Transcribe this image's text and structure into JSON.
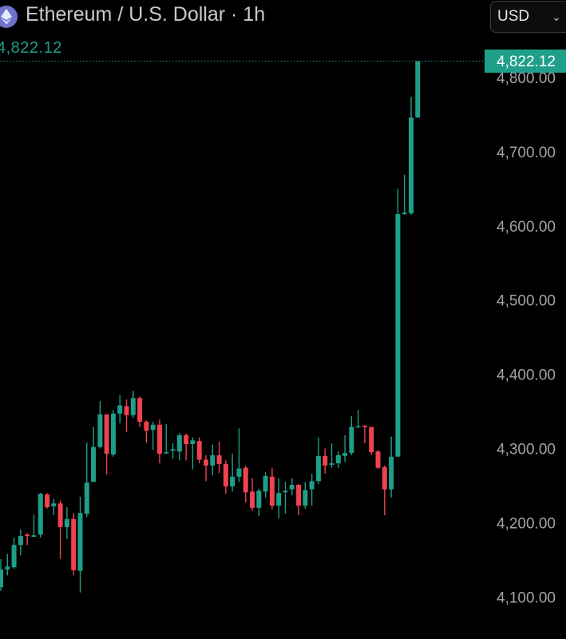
{
  "header": {
    "title": "Ethereum / U.S. Dollar · 1h",
    "icon": "ethereum-icon",
    "last_price": "4,822.12"
  },
  "currency_selector": {
    "value": "USD",
    "icon": "chevron-down-icon"
  },
  "colors": {
    "up": "#1f9e89",
    "down": "#f0424f",
    "axis_text": "#a3a3a6",
    "background": "#000000"
  },
  "chart_data": {
    "type": "candlestick",
    "title": "Ethereum / U.S. Dollar · 1h",
    "y_ticks": [
      "4,800.00",
      "4,700.00",
      "4,600.00",
      "4,500.00",
      "4,400.00",
      "4,300.00",
      "4,200.00",
      "4,100.00"
    ],
    "y_tick_values": [
      4800,
      4700,
      4600,
      4500,
      4400,
      4300,
      4200,
      4100
    ],
    "ylim": [
      4055,
      4870
    ],
    "last_price_label": "4,822.12",
    "last_price": 4822.12,
    "grid": false,
    "candles": [
      [
        4113,
        4151,
        4108,
        4137
      ],
      [
        4137,
        4158,
        4129,
        4141
      ],
      [
        4140,
        4180,
        4138,
        4170
      ],
      [
        4170,
        4191,
        4156,
        4182
      ],
      [
        4184,
        4186,
        4170,
        4182
      ],
      [
        4181,
        4211,
        4181,
        4183
      ],
      [
        4184,
        4240,
        4180,
        4239
      ],
      [
        4238,
        4240,
        4219,
        4221
      ],
      [
        4222,
        4232,
        4210,
        4226
      ],
      [
        4226,
        4230,
        4151,
        4194
      ],
      [
        4194,
        4221,
        4178,
        4205
      ],
      [
        4205,
        4213,
        4129,
        4136
      ],
      [
        4135,
        4235,
        4106,
        4213
      ],
      [
        4212,
        4308,
        4208,
        4254
      ],
      [
        4255,
        4329,
        4255,
        4302
      ],
      [
        4302,
        4364,
        4300,
        4346
      ],
      [
        4346,
        4346,
        4265,
        4293
      ],
      [
        4292,
        4352,
        4289,
        4347
      ],
      [
        4347,
        4372,
        4334,
        4358
      ],
      [
        4357,
        4366,
        4322,
        4345
      ],
      [
        4345,
        4378,
        4341,
        4368
      ],
      [
        4368,
        4370,
        4329,
        4336
      ],
      [
        4336,
        4338,
        4308,
        4324
      ],
      [
        4325,
        4336,
        4298,
        4332
      ],
      [
        4332,
        4339,
        4280,
        4293
      ],
      [
        4294,
        4333,
        4293,
        4295
      ],
      [
        4297,
        4307,
        4286,
        4299
      ],
      [
        4296,
        4321,
        4284,
        4318
      ],
      [
        4318,
        4320,
        4284,
        4306
      ],
      [
        4306,
        4315,
        4272,
        4311
      ],
      [
        4310,
        4315,
        4280,
        4285
      ],
      [
        4285,
        4291,
        4256,
        4277
      ],
      [
        4277,
        4305,
        4264,
        4291
      ],
      [
        4291,
        4309,
        4267,
        4279
      ],
      [
        4279,
        4284,
        4239,
        4249
      ],
      [
        4249,
        4293,
        4242,
        4262
      ],
      [
        4262,
        4327,
        4255,
        4273
      ],
      [
        4274,
        4277,
        4227,
        4241
      ],
      [
        4242,
        4260,
        4216,
        4220
      ],
      [
        4220,
        4246,
        4209,
        4243
      ],
      [
        4242,
        4268,
        4234,
        4263
      ],
      [
        4262,
        4274,
        4218,
        4223
      ],
      [
        4223,
        4260,
        4206,
        4240
      ],
      [
        4241,
        4255,
        4212,
        4243
      ],
      [
        4245,
        4260,
        4237,
        4251
      ],
      [
        4251,
        4252,
        4210,
        4223
      ],
      [
        4223,
        4255,
        4219,
        4244
      ],
      [
        4245,
        4266,
        4223,
        4256
      ],
      [
        4256,
        4315,
        4252,
        4290
      ],
      [
        4290,
        4300,
        4266,
        4277
      ],
      [
        4278,
        4307,
        4274,
        4280
      ],
      [
        4280,
        4296,
        4274,
        4291
      ],
      [
        4290,
        4318,
        4282,
        4294
      ],
      [
        4294,
        4344,
        4291,
        4329
      ],
      [
        4329,
        4352,
        4328,
        4330
      ],
      [
        4331,
        4331,
        4307,
        4329
      ],
      [
        4329,
        4329,
        4291,
        4295
      ],
      [
        4296,
        4298,
        4272,
        4274
      ],
      [
        4275,
        4277,
        4210,
        4245
      ],
      [
        4245,
        4316,
        4234,
        4289
      ],
      [
        4289,
        4650,
        4289,
        4616
      ],
      [
        4616,
        4669,
        4615,
        4618
      ],
      [
        4617,
        4774,
        4615,
        4746
      ],
      [
        4746,
        4822.12,
        4746,
        4822.12
      ]
    ],
    "candle_fields": [
      "open",
      "high",
      "low",
      "close"
    ],
    "interval": "1h"
  }
}
